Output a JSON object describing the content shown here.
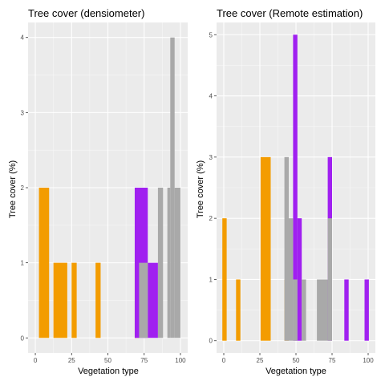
{
  "chart_data": [
    {
      "type": "bar",
      "title": "Tree cover (densiometer)",
      "xlabel": "Vegetation type",
      "ylabel": "Tree cover (%)",
      "xlim": [
        -5,
        105
      ],
      "ylim": [
        -0.2,
        4.2
      ],
      "x_ticks": [
        0,
        25,
        50,
        75,
        100
      ],
      "y_ticks": [
        0,
        1,
        2,
        3,
        4
      ],
      "grid": true,
      "series": [
        {
          "name": "orange",
          "color": "#f39c00",
          "bars": [
            {
              "x0": 2.5,
              "x1": 9.5,
              "value": 2
            },
            {
              "x0": 12.5,
              "x1": 22,
              "value": 1
            },
            {
              "x0": 25,
              "x1": 28.5,
              "value": 1
            },
            {
              "x0": 41.5,
              "x1": 45,
              "value": 1
            },
            {
              "x0": 68.5,
              "x1": 71.5,
              "value": 1
            }
          ]
        },
        {
          "name": "purple",
          "color": "#a020f0",
          "bars": [
            {
              "x0": 68.5,
              "x1": 77.5,
              "value": 2
            },
            {
              "x0": 77.5,
              "x1": 84.5,
              "value": 1
            }
          ]
        },
        {
          "name": "gray",
          "color": "#a9a9a9",
          "bars": [
            {
              "x0": 71.5,
              "x1": 77.5,
              "value": 1
            },
            {
              "x0": 84.5,
              "x1": 88,
              "value": 2
            },
            {
              "x0": 91,
              "x1": 93,
              "value": 2
            },
            {
              "x0": 93,
              "x1": 96,
              "value": 4
            },
            {
              "x0": 96,
              "x1": 100,
              "value": 2
            }
          ]
        }
      ]
    },
    {
      "type": "bar",
      "title": "Tree cover (Remote estimation)",
      "xlabel": "Vegetation type",
      "ylabel": "Tree cover (%)",
      "xlim": [
        -5,
        105
      ],
      "ylim": [
        -0.2,
        5.2
      ],
      "x_ticks": [
        0,
        25,
        50,
        75,
        100
      ],
      "y_ticks": [
        0,
        1,
        2,
        3,
        4,
        5
      ],
      "grid": true,
      "series": [
        {
          "name": "orange",
          "color": "#f39c00",
          "bars": [
            {
              "x0": -1,
              "x1": 2,
              "value": 2
            },
            {
              "x0": 8.5,
              "x1": 11.5,
              "value": 1
            },
            {
              "x0": 25.5,
              "x1": 32.5,
              "value": 3
            },
            {
              "x0": 42,
              "x1": 45,
              "value": 1
            }
          ]
        },
        {
          "name": "purple",
          "color": "#a020f0",
          "bars": [
            {
              "x0": 48,
              "x1": 51,
              "value": 5
            },
            {
              "x0": 51,
              "x1": 54,
              "value": 2
            },
            {
              "x0": 72,
              "x1": 75,
              "value": 3
            },
            {
              "x0": 83.5,
              "x1": 86.5,
              "value": 1
            },
            {
              "x0": 97.5,
              "x1": 100.5,
              "value": 1
            }
          ]
        },
        {
          "name": "gray",
          "color": "#a9a9a9",
          "bars": [
            {
              "x0": 42,
              "x1": 45,
              "value": 3
            },
            {
              "x0": 45,
              "x1": 48,
              "value": 2
            },
            {
              "x0": 48,
              "x1": 51,
              "value": 1
            },
            {
              "x0": 54,
              "x1": 57,
              "value": 1
            },
            {
              "x0": 64.5,
              "x1": 72,
              "value": 1
            },
            {
              "x0": 72,
              "x1": 75,
              "value": 2
            }
          ]
        }
      ]
    }
  ]
}
